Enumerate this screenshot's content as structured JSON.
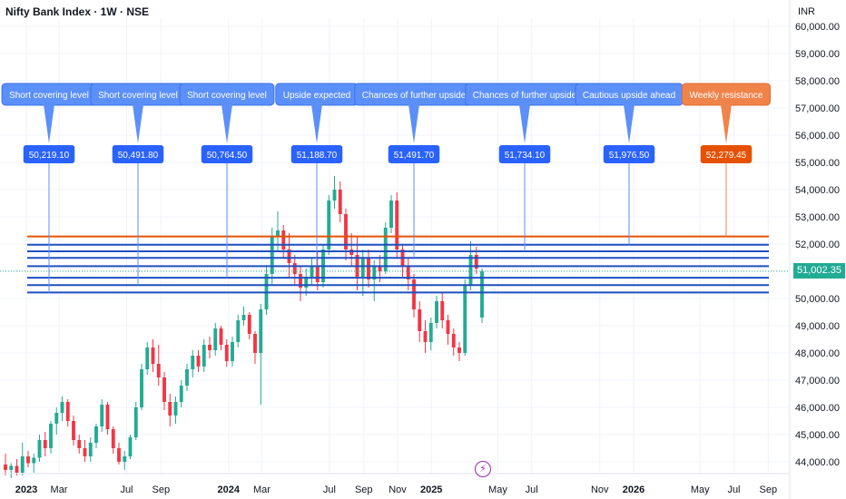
{
  "header": {
    "title": "Nifty Bank Index · 1W · NSE",
    "currency": "INR"
  },
  "last_price": {
    "label": "51,002.35",
    "value": 51002.35,
    "color": "#22ab94"
  },
  "alert_icon": "lightning-icon",
  "colors": {
    "up": "#22ab94",
    "down": "#f23645",
    "level_line": "#1e4fc2",
    "callout_blue": "#5b8ff9",
    "callout_blue_badge": "#2962ff",
    "callout_orange": "#f0834a",
    "callout_orange_badge": "#e65100",
    "resistance_line": "#e65100"
  },
  "chart_data": {
    "type": "candlestick",
    "y_axis": {
      "range": [
        43600,
        60200
      ],
      "ticks": [
        44000,
        45000,
        46000,
        47000,
        48000,
        49000,
        50000,
        51000,
        52000,
        53000,
        54000,
        55000,
        56000,
        57000,
        58000,
        59000,
        60000
      ],
      "tick_labels": [
        "44,000.00",
        "45,000.00",
        "46,000.00",
        "47,000.00",
        "48,000.00",
        "49,000.00",
        "50,000.00",
        "51,000.00",
        "52,000.00",
        "53,000.00",
        "54,000.00",
        "55,000.00",
        "56,000.00",
        "57,000.00",
        "58,000.00",
        "59,000.00",
        "60,000.00"
      ]
    },
    "x_axis": {
      "ticks": [
        {
          "label": "2023",
          "date": "2023-01-01",
          "bold": true
        },
        {
          "label": "Mar",
          "date": "2023-03-01",
          "bold": false
        },
        {
          "label": "Jul",
          "date": "2023-07-01",
          "bold": false
        },
        {
          "label": "Sep",
          "date": "2023-09-01",
          "bold": false
        },
        {
          "label": "2024",
          "date": "2024-01-01",
          "bold": true
        },
        {
          "label": "Mar",
          "date": "2024-03-01",
          "bold": false
        },
        {
          "label": "Jul",
          "date": "2024-07-01",
          "bold": false
        },
        {
          "label": "Sep",
          "date": "2024-09-01",
          "bold": false
        },
        {
          "label": "Nov",
          "date": "2024-11-01",
          "bold": false
        },
        {
          "label": "2025",
          "date": "2025-01-01",
          "bold": true
        },
        {
          "label": "May",
          "date": "2025-05-01",
          "bold": false
        },
        {
          "label": "Jul",
          "date": "2025-07-01",
          "bold": false
        },
        {
          "label": "Nov",
          "date": "2025-11-01",
          "bold": false
        },
        {
          "label": "2026",
          "date": "2026-01-01",
          "bold": true
        },
        {
          "label": "May",
          "date": "2026-05-01",
          "bold": false
        },
        {
          "label": "Jul",
          "date": "2026-07-01",
          "bold": false
        },
        {
          "label": "Sep",
          "date": "2026-09-01",
          "bold": false
        }
      ]
    },
    "candles": [
      {
        "o": 43900,
        "h": 44300,
        "l": 43500,
        "c": 43700
      },
      {
        "o": 43700,
        "h": 43950,
        "l": 43400,
        "c": 43850
      },
      {
        "o": 43850,
        "h": 44100,
        "l": 43500,
        "c": 43600
      },
      {
        "o": 43600,
        "h": 44700,
        "l": 43500,
        "c": 44200
      },
      {
        "o": 44200,
        "h": 44400,
        "l": 43800,
        "c": 43950
      },
      {
        "o": 43950,
        "h": 44300,
        "l": 43600,
        "c": 44150
      },
      {
        "o": 44150,
        "h": 45000,
        "l": 44000,
        "c": 44800
      },
      {
        "o": 44800,
        "h": 45100,
        "l": 44200,
        "c": 44500
      },
      {
        "o": 44500,
        "h": 45500,
        "l": 44300,
        "c": 45400
      },
      {
        "o": 45400,
        "h": 46000,
        "l": 45000,
        "c": 45800
      },
      {
        "o": 45800,
        "h": 46400,
        "l": 45500,
        "c": 46200
      },
      {
        "o": 46200,
        "h": 46300,
        "l": 45300,
        "c": 45500
      },
      {
        "o": 45500,
        "h": 45700,
        "l": 44600,
        "c": 44800
      },
      {
        "o": 44800,
        "h": 45000,
        "l": 44300,
        "c": 44500
      },
      {
        "o": 44500,
        "h": 44800,
        "l": 44000,
        "c": 44200
      },
      {
        "o": 44200,
        "h": 44900,
        "l": 44000,
        "c": 44700
      },
      {
        "o": 44700,
        "h": 45400,
        "l": 44500,
        "c": 45300
      },
      {
        "o": 45300,
        "h": 46300,
        "l": 45100,
        "c": 46100
      },
      {
        "o": 46100,
        "h": 46200,
        "l": 45000,
        "c": 45200
      },
      {
        "o": 45200,
        "h": 45300,
        "l": 44300,
        "c": 44500
      },
      {
        "o": 44500,
        "h": 44700,
        "l": 43900,
        "c": 44000
      },
      {
        "o": 44000,
        "h": 44400,
        "l": 43700,
        "c": 44200
      },
      {
        "o": 44200,
        "h": 45000,
        "l": 44100,
        "c": 44900
      },
      {
        "o": 44900,
        "h": 46200,
        "l": 44800,
        "c": 46000
      },
      {
        "o": 46000,
        "h": 47600,
        "l": 45900,
        "c": 47400
      },
      {
        "o": 47400,
        "h": 48400,
        "l": 47200,
        "c": 48200
      },
      {
        "o": 48200,
        "h": 48500,
        "l": 47300,
        "c": 47600
      },
      {
        "o": 47600,
        "h": 48300,
        "l": 46800,
        "c": 47100
      },
      {
        "o": 47100,
        "h": 47300,
        "l": 45900,
        "c": 46200
      },
      {
        "o": 46200,
        "h": 46500,
        "l": 45300,
        "c": 45700
      },
      {
        "o": 45700,
        "h": 46400,
        "l": 45400,
        "c": 46200
      },
      {
        "o": 46200,
        "h": 47000,
        "l": 46000,
        "c": 46800
      },
      {
        "o": 46800,
        "h": 47600,
        "l": 46600,
        "c": 47400
      },
      {
        "o": 47400,
        "h": 48100,
        "l": 47100,
        "c": 47900
      },
      {
        "o": 47900,
        "h": 48100,
        "l": 47300,
        "c": 47500
      },
      {
        "o": 47500,
        "h": 48500,
        "l": 47300,
        "c": 48300
      },
      {
        "o": 48300,
        "h": 48600,
        "l": 47800,
        "c": 48100
      },
      {
        "o": 48100,
        "h": 49100,
        "l": 47900,
        "c": 48900
      },
      {
        "o": 48900,
        "h": 49000,
        "l": 48100,
        "c": 48300
      },
      {
        "o": 48300,
        "h": 48500,
        "l": 47500,
        "c": 47700
      },
      {
        "o": 47700,
        "h": 48600,
        "l": 47500,
        "c": 48400
      },
      {
        "o": 48400,
        "h": 49400,
        "l": 48200,
        "c": 49200
      },
      {
        "o": 49200,
        "h": 49700,
        "l": 49000,
        "c": 49400
      },
      {
        "o": 49400,
        "h": 49500,
        "l": 48500,
        "c": 48700
      },
      {
        "o": 48700,
        "h": 48800,
        "l": 47600,
        "c": 48000
      },
      {
        "o": 48000,
        "h": 49800,
        "l": 46100,
        "c": 49600
      },
      {
        "o": 49600,
        "h": 51200,
        "l": 49400,
        "c": 50900
      },
      {
        "o": 50900,
        "h": 52600,
        "l": 50500,
        "c": 52300
      },
      {
        "o": 52300,
        "h": 53200,
        "l": 51700,
        "c": 52500
      },
      {
        "o": 52500,
        "h": 52700,
        "l": 51500,
        "c": 51800
      },
      {
        "o": 51800,
        "h": 52400,
        "l": 50800,
        "c": 51300
      },
      {
        "o": 51300,
        "h": 51600,
        "l": 50500,
        "c": 50900
      },
      {
        "o": 50900,
        "h": 51200,
        "l": 49900,
        "c": 50400
      },
      {
        "o": 50400,
        "h": 51100,
        "l": 50100,
        "c": 50800
      },
      {
        "o": 50800,
        "h": 51500,
        "l": 50500,
        "c": 51200
      },
      {
        "o": 51200,
        "h": 51700,
        "l": 50300,
        "c": 50600
      },
      {
        "o": 50600,
        "h": 52000,
        "l": 50400,
        "c": 51800
      },
      {
        "o": 51800,
        "h": 53800,
        "l": 51600,
        "c": 53600
      },
      {
        "o": 53600,
        "h": 54500,
        "l": 53300,
        "c": 54000
      },
      {
        "o": 54000,
        "h": 54300,
        "l": 52800,
        "c": 53100
      },
      {
        "o": 53100,
        "h": 53300,
        "l": 51400,
        "c": 51800
      },
      {
        "o": 51800,
        "h": 52400,
        "l": 51200,
        "c": 51600
      },
      {
        "o": 51600,
        "h": 52300,
        "l": 50300,
        "c": 50800
      },
      {
        "o": 50800,
        "h": 51800,
        "l": 50100,
        "c": 51500
      },
      {
        "o": 51500,
        "h": 51800,
        "l": 50400,
        "c": 50700
      },
      {
        "o": 50700,
        "h": 51400,
        "l": 49900,
        "c": 51200
      },
      {
        "o": 51200,
        "h": 51600,
        "l": 50600,
        "c": 51000
      },
      {
        "o": 51000,
        "h": 52800,
        "l": 50900,
        "c": 52600
      },
      {
        "o": 52600,
        "h": 53800,
        "l": 52400,
        "c": 53600
      },
      {
        "o": 53600,
        "h": 53900,
        "l": 51500,
        "c": 51800
      },
      {
        "o": 51800,
        "h": 52000,
        "l": 50800,
        "c": 51200
      },
      {
        "o": 51200,
        "h": 51500,
        "l": 50300,
        "c": 50700
      },
      {
        "o": 50700,
        "h": 50900,
        "l": 49300,
        "c": 49600
      },
      {
        "o": 49600,
        "h": 49900,
        "l": 48400,
        "c": 48800
      },
      {
        "o": 48800,
        "h": 49200,
        "l": 48000,
        "c": 48400
      },
      {
        "o": 48400,
        "h": 49300,
        "l": 48100,
        "c": 49100
      },
      {
        "o": 49100,
        "h": 50100,
        "l": 48900,
        "c": 49900
      },
      {
        "o": 49900,
        "h": 50200,
        "l": 48900,
        "c": 49200
      },
      {
        "o": 49200,
        "h": 49400,
        "l": 48300,
        "c": 48700
      },
      {
        "o": 48700,
        "h": 48900,
        "l": 47900,
        "c": 48200
      },
      {
        "o": 48200,
        "h": 48400,
        "l": 47700,
        "c": 48000
      },
      {
        "o": 48000,
        "h": 50700,
        "l": 47900,
        "c": 50500
      },
      {
        "o": 50500,
        "h": 52100,
        "l": 50300,
        "c": 51600
      },
      {
        "o": 51600,
        "h": 51900,
        "l": 50900,
        "c": 51100
      },
      {
        "o": 49300,
        "h": 51100,
        "l": 49100,
        "c": 51002.35
      }
    ],
    "levels": [
      {
        "value": 50219.1,
        "label": "Short covering level",
        "value_label": "50,219.10",
        "style": "blue"
      },
      {
        "value": 50491.8,
        "label": "Short covering level",
        "value_label": "50,491.80",
        "style": "blue"
      },
      {
        "value": 50764.5,
        "label": "Short covering level",
        "value_label": "50,764.50",
        "style": "blue"
      },
      {
        "value": 51188.7,
        "label": "Upside expected",
        "value_label": "51,188.70",
        "style": "blue"
      },
      {
        "value": 51491.7,
        "label": "Chances of further upside",
        "value_label": "51,491.70",
        "style": "blue"
      },
      {
        "value": 51734.1,
        "label": "Chances of further upside",
        "value_label": "51,734.10",
        "style": "blue"
      },
      {
        "value": 51976.5,
        "label": "Cautious upside ahead",
        "value_label": "51,976.50",
        "style": "blue"
      },
      {
        "value": 52279.45,
        "label": "Weekly resistance",
        "value_label": "52,279.45",
        "style": "orange"
      }
    ]
  }
}
